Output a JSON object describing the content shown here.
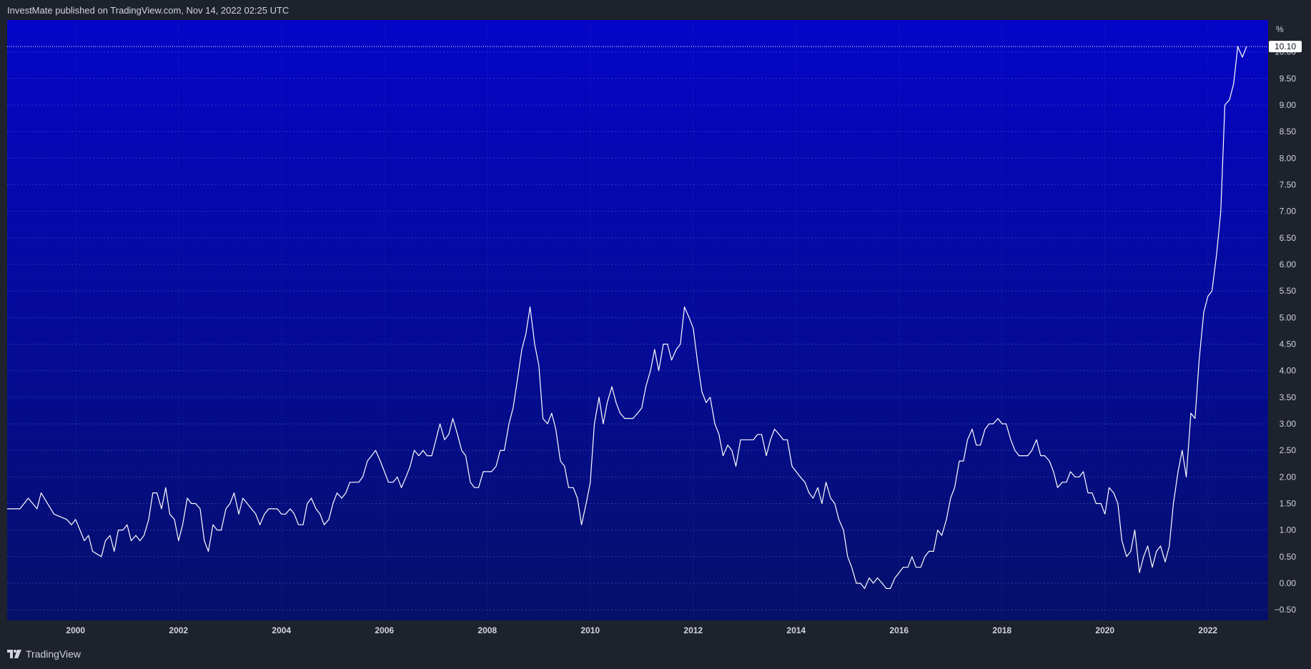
{
  "header": {
    "attribution": "InvestMate published on TradingView.com, Nov 14, 2022 02:25 UTC"
  },
  "footer": {
    "brand": "TradingView"
  },
  "colors": {
    "background": "#1e222d",
    "plot_top": "#0505c8",
    "plot_bottom": "#05106a",
    "line": "#ffffff",
    "grid": "#4f63c8"
  },
  "chart_data": {
    "type": "line",
    "unit_label": "%",
    "last_value_label": "10.10",
    "last_value": 10.1,
    "ylim": [
      -0.7,
      10.6
    ],
    "xlim": [
      1998.67,
      2023.17
    ],
    "y_ticks": [
      -0.5,
      0,
      0.5,
      1,
      1.5,
      2,
      2.5,
      3,
      3.5,
      4,
      4.5,
      5,
      5.5,
      6,
      6.5,
      7,
      7.5,
      8,
      8.5,
      9,
      9.5,
      10
    ],
    "y_tick_labels": [
      "−0.50",
      "0.00",
      "0.50",
      "1.00",
      "1.50",
      "2.00",
      "2.50",
      "3.00",
      "3.50",
      "4.00",
      "4.50",
      "5.00",
      "5.50",
      "6.00",
      "6.50",
      "7.00",
      "7.50",
      "8.00",
      "8.50",
      "9.00",
      "9.50",
      "10.00"
    ],
    "x_ticks": [
      2000,
      2002,
      2004,
      2006,
      2008,
      2010,
      2012,
      2014,
      2016,
      2018,
      2020,
      2022
    ],
    "x_tick_labels": [
      "2000",
      "2002",
      "2004",
      "2006",
      "2008",
      "2010",
      "2012",
      "2014",
      "2016",
      "2018",
      "2020",
      "2022"
    ],
    "grid": true,
    "series": [
      {
        "values": [
          [
            1998.67,
            1.4
          ],
          [
            1998.92,
            1.4
          ],
          [
            1999.08,
            1.6
          ],
          [
            1999.25,
            1.4
          ],
          [
            1999.33,
            1.7
          ],
          [
            1999.58,
            1.3
          ],
          [
            1999.83,
            1.2
          ],
          [
            1999.92,
            1.1
          ],
          [
            2000.0,
            1.2
          ],
          [
            2000.17,
            0.8
          ],
          [
            2000.25,
            0.9
          ],
          [
            2000.33,
            0.6
          ],
          [
            2000.5,
            0.5
          ],
          [
            2000.58,
            0.8
          ],
          [
            2000.67,
            0.9
          ],
          [
            2000.75,
            0.6
          ],
          [
            2000.83,
            1.0
          ],
          [
            2000.92,
            1.0
          ],
          [
            2001.0,
            1.1
          ],
          [
            2001.08,
            0.8
          ],
          [
            2001.17,
            0.9
          ],
          [
            2001.25,
            0.8
          ],
          [
            2001.33,
            0.9
          ],
          [
            2001.42,
            1.2
          ],
          [
            2001.5,
            1.7
          ],
          [
            2001.58,
            1.7
          ],
          [
            2001.67,
            1.4
          ],
          [
            2001.75,
            1.8
          ],
          [
            2001.83,
            1.3
          ],
          [
            2001.92,
            1.2
          ],
          [
            2002.0,
            0.8
          ],
          [
            2002.08,
            1.1
          ],
          [
            2002.17,
            1.6
          ],
          [
            2002.25,
            1.5
          ],
          [
            2002.33,
            1.5
          ],
          [
            2002.42,
            1.4
          ],
          [
            2002.5,
            0.8
          ],
          [
            2002.58,
            0.6
          ],
          [
            2002.67,
            1.1
          ],
          [
            2002.75,
            1.0
          ],
          [
            2002.83,
            1.0
          ],
          [
            2002.92,
            1.4
          ],
          [
            2003.0,
            1.5
          ],
          [
            2003.08,
            1.7
          ],
          [
            2003.17,
            1.3
          ],
          [
            2003.25,
            1.6
          ],
          [
            2003.5,
            1.3
          ],
          [
            2003.58,
            1.1
          ],
          [
            2003.67,
            1.3
          ],
          [
            2003.75,
            1.4
          ],
          [
            2003.92,
            1.4
          ],
          [
            2004.0,
            1.3
          ],
          [
            2004.08,
            1.3
          ],
          [
            2004.17,
            1.4
          ],
          [
            2004.25,
            1.3
          ],
          [
            2004.33,
            1.1
          ],
          [
            2004.42,
            1.1
          ],
          [
            2004.5,
            1.5
          ],
          [
            2004.58,
            1.6
          ],
          [
            2004.67,
            1.4
          ],
          [
            2004.75,
            1.3
          ],
          [
            2004.83,
            1.1
          ],
          [
            2004.92,
            1.2
          ],
          [
            2005.0,
            1.5
          ],
          [
            2005.08,
            1.7
          ],
          [
            2005.17,
            1.6
          ],
          [
            2005.25,
            1.7
          ],
          [
            2005.33,
            1.9
          ],
          [
            2005.5,
            1.9
          ],
          [
            2005.58,
            2.0
          ],
          [
            2005.67,
            2.3
          ],
          [
            2005.75,
            2.4
          ],
          [
            2005.83,
            2.5
          ],
          [
            2005.92,
            2.3
          ],
          [
            2006.0,
            2.1
          ],
          [
            2006.08,
            1.9
          ],
          [
            2006.17,
            1.9
          ],
          [
            2006.25,
            2.0
          ],
          [
            2006.33,
            1.8
          ],
          [
            2006.42,
            2.0
          ],
          [
            2006.5,
            2.2
          ],
          [
            2006.58,
            2.5
          ],
          [
            2006.67,
            2.4
          ],
          [
            2006.75,
            2.5
          ],
          [
            2006.83,
            2.4
          ],
          [
            2006.92,
            2.4
          ],
          [
            2007.0,
            2.7
          ],
          [
            2007.08,
            3.0
          ],
          [
            2007.17,
            2.7
          ],
          [
            2007.25,
            2.8
          ],
          [
            2007.33,
            3.1
          ],
          [
            2007.42,
            2.8
          ],
          [
            2007.5,
            2.5
          ],
          [
            2007.58,
            2.4
          ],
          [
            2007.67,
            1.9
          ],
          [
            2007.75,
            1.8
          ],
          [
            2007.83,
            1.8
          ],
          [
            2007.92,
            2.1
          ],
          [
            2008.08,
            2.1
          ],
          [
            2008.17,
            2.2
          ],
          [
            2008.25,
            2.5
          ],
          [
            2008.33,
            2.5
          ],
          [
            2008.42,
            3.0
          ],
          [
            2008.5,
            3.3
          ],
          [
            2008.58,
            3.8
          ],
          [
            2008.67,
            4.4
          ],
          [
            2008.75,
            4.7
          ],
          [
            2008.83,
            5.2
          ],
          [
            2008.92,
            4.5
          ],
          [
            2009.0,
            4.1
          ],
          [
            2009.08,
            3.1
          ],
          [
            2009.17,
            3.0
          ],
          [
            2009.25,
            3.2
          ],
          [
            2009.33,
            2.9
          ],
          [
            2009.42,
            2.3
          ],
          [
            2009.5,
            2.2
          ],
          [
            2009.58,
            1.8
          ],
          [
            2009.67,
            1.8
          ],
          [
            2009.75,
            1.6
          ],
          [
            2009.83,
            1.1
          ],
          [
            2009.92,
            1.5
          ],
          [
            2010.0,
            1.9
          ],
          [
            2010.08,
            3.0
          ],
          [
            2010.17,
            3.5
          ],
          [
            2010.25,
            3.0
          ],
          [
            2010.33,
            3.4
          ],
          [
            2010.42,
            3.7
          ],
          [
            2010.5,
            3.4
          ],
          [
            2010.58,
            3.2
          ],
          [
            2010.67,
            3.1
          ],
          [
            2010.83,
            3.1
          ],
          [
            2010.92,
            3.2
          ],
          [
            2011.0,
            3.3
          ],
          [
            2011.08,
            3.7
          ],
          [
            2011.17,
            4.0
          ],
          [
            2011.25,
            4.4
          ],
          [
            2011.33,
            4.0
          ],
          [
            2011.42,
            4.5
          ],
          [
            2011.5,
            4.5
          ],
          [
            2011.58,
            4.2
          ],
          [
            2011.67,
            4.4
          ],
          [
            2011.75,
            4.5
          ],
          [
            2011.83,
            5.2
          ],
          [
            2011.92,
            5.0
          ],
          [
            2012.0,
            4.8
          ],
          [
            2012.08,
            4.2
          ],
          [
            2012.17,
            3.6
          ],
          [
            2012.25,
            3.4
          ],
          [
            2012.33,
            3.5
          ],
          [
            2012.42,
            3.0
          ],
          [
            2012.5,
            2.8
          ],
          [
            2012.58,
            2.4
          ],
          [
            2012.67,
            2.6
          ],
          [
            2012.75,
            2.5
          ],
          [
            2012.83,
            2.2
          ],
          [
            2012.92,
            2.7
          ],
          [
            2013.08,
            2.7
          ],
          [
            2013.17,
            2.7
          ],
          [
            2013.25,
            2.8
          ],
          [
            2013.33,
            2.8
          ],
          [
            2013.42,
            2.4
          ],
          [
            2013.5,
            2.7
          ],
          [
            2013.58,
            2.9
          ],
          [
            2013.67,
            2.8
          ],
          [
            2013.75,
            2.7
          ],
          [
            2013.83,
            2.7
          ],
          [
            2013.92,
            2.2
          ],
          [
            2014.0,
            2.1
          ],
          [
            2014.08,
            2.0
          ],
          [
            2014.17,
            1.9
          ],
          [
            2014.25,
            1.7
          ],
          [
            2014.33,
            1.6
          ],
          [
            2014.42,
            1.8
          ],
          [
            2014.5,
            1.5
          ],
          [
            2014.58,
            1.9
          ],
          [
            2014.67,
            1.6
          ],
          [
            2014.75,
            1.5
          ],
          [
            2014.83,
            1.2
          ],
          [
            2014.92,
            1.0
          ],
          [
            2015.0,
            0.5
          ],
          [
            2015.08,
            0.3
          ],
          [
            2015.17,
            0.0
          ],
          [
            2015.25,
            0.0
          ],
          [
            2015.33,
            -0.1
          ],
          [
            2015.42,
            0.1
          ],
          [
            2015.5,
            0.0
          ],
          [
            2015.58,
            0.1
          ],
          [
            2015.67,
            0.0
          ],
          [
            2015.75,
            -0.1
          ],
          [
            2015.83,
            -0.1
          ],
          [
            2015.92,
            0.1
          ],
          [
            2016.0,
            0.2
          ],
          [
            2016.08,
            0.3
          ],
          [
            2016.17,
            0.3
          ],
          [
            2016.25,
            0.5
          ],
          [
            2016.33,
            0.3
          ],
          [
            2016.42,
            0.3
          ],
          [
            2016.5,
            0.5
          ],
          [
            2016.58,
            0.6
          ],
          [
            2016.67,
            0.6
          ],
          [
            2016.75,
            1.0
          ],
          [
            2016.83,
            0.9
          ],
          [
            2016.92,
            1.2
          ],
          [
            2017.0,
            1.6
          ],
          [
            2017.08,
            1.8
          ],
          [
            2017.17,
            2.3
          ],
          [
            2017.25,
            2.3
          ],
          [
            2017.33,
            2.7
          ],
          [
            2017.42,
            2.9
          ],
          [
            2017.5,
            2.6
          ],
          [
            2017.58,
            2.6
          ],
          [
            2017.67,
            2.9
          ],
          [
            2017.75,
            3.0
          ],
          [
            2017.83,
            3.0
          ],
          [
            2017.92,
            3.1
          ],
          [
            2018.0,
            3.0
          ],
          [
            2018.08,
            3.0
          ],
          [
            2018.17,
            2.7
          ],
          [
            2018.25,
            2.5
          ],
          [
            2018.33,
            2.4
          ],
          [
            2018.5,
            2.4
          ],
          [
            2018.58,
            2.5
          ],
          [
            2018.67,
            2.7
          ],
          [
            2018.75,
            2.4
          ],
          [
            2018.83,
            2.4
          ],
          [
            2018.92,
            2.3
          ],
          [
            2019.0,
            2.1
          ],
          [
            2019.08,
            1.8
          ],
          [
            2019.17,
            1.9
          ],
          [
            2019.25,
            1.9
          ],
          [
            2019.33,
            2.1
          ],
          [
            2019.42,
            2.0
          ],
          [
            2019.5,
            2.0
          ],
          [
            2019.58,
            2.1
          ],
          [
            2019.67,
            1.7
          ],
          [
            2019.75,
            1.7
          ],
          [
            2019.83,
            1.5
          ],
          [
            2019.92,
            1.5
          ],
          [
            2020.0,
            1.3
          ],
          [
            2020.08,
            1.8
          ],
          [
            2020.17,
            1.7
          ],
          [
            2020.25,
            1.5
          ],
          [
            2020.33,
            0.8
          ],
          [
            2020.42,
            0.5
          ],
          [
            2020.5,
            0.6
          ],
          [
            2020.58,
            1.0
          ],
          [
            2020.67,
            0.2
          ],
          [
            2020.75,
            0.5
          ],
          [
            2020.83,
            0.7
          ],
          [
            2020.92,
            0.3
          ],
          [
            2021.0,
            0.6
          ],
          [
            2021.08,
            0.7
          ],
          [
            2021.17,
            0.4
          ],
          [
            2021.25,
            0.7
          ],
          [
            2021.33,
            1.5
          ],
          [
            2021.42,
            2.1
          ],
          [
            2021.5,
            2.5
          ],
          [
            2021.58,
            2.0
          ],
          [
            2021.67,
            3.2
          ],
          [
            2021.75,
            3.1
          ],
          [
            2021.83,
            4.2
          ],
          [
            2021.92,
            5.1
          ],
          [
            2022.0,
            5.4
          ],
          [
            2022.08,
            5.5
          ],
          [
            2022.17,
            6.2
          ],
          [
            2022.25,
            7.0
          ],
          [
            2022.33,
            9.0
          ],
          [
            2022.42,
            9.1
          ],
          [
            2022.5,
            9.4
          ],
          [
            2022.58,
            10.1
          ],
          [
            2022.67,
            9.9
          ],
          [
            2022.75,
            10.1
          ]
        ]
      }
    ]
  }
}
